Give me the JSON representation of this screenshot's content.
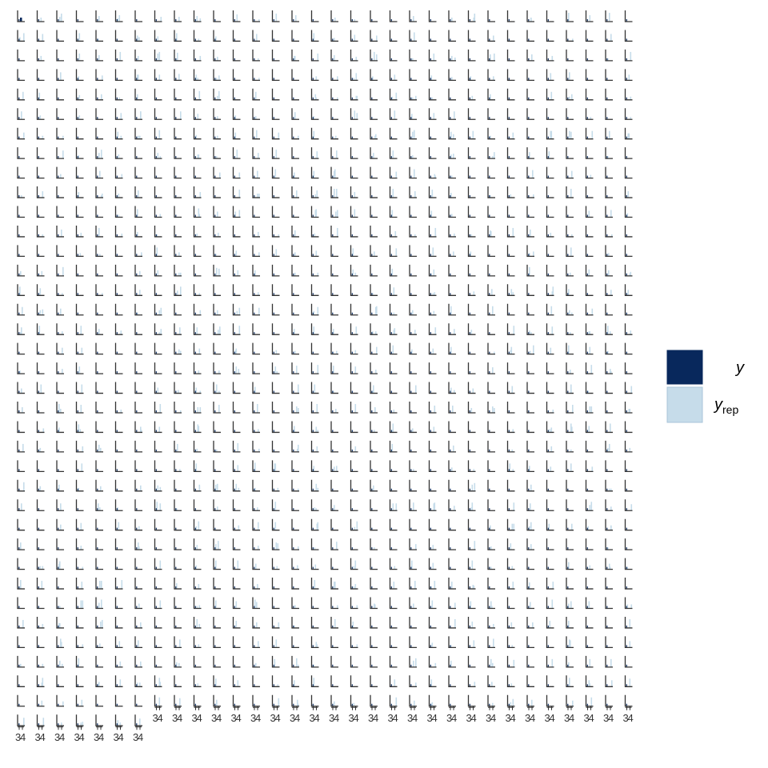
{
  "chart_data": {
    "type": "bar",
    "facets": {
      "rows": 37,
      "cols": 32,
      "count": 1159
    },
    "y_colors": {
      "y": "#08285c",
      "y_rep": "#c6dcea"
    },
    "x_tick_labels": [
      "3",
      "4"
    ],
    "legend": {
      "placement": "right",
      "entries": [
        {
          "key": "y",
          "label": "y",
          "subscript": "",
          "color": "#08285c"
        },
        {
          "key": "yrep",
          "label": "y",
          "subscript": "rep",
          "color": "#c6dcea"
        }
      ]
    },
    "grid": false
  }
}
